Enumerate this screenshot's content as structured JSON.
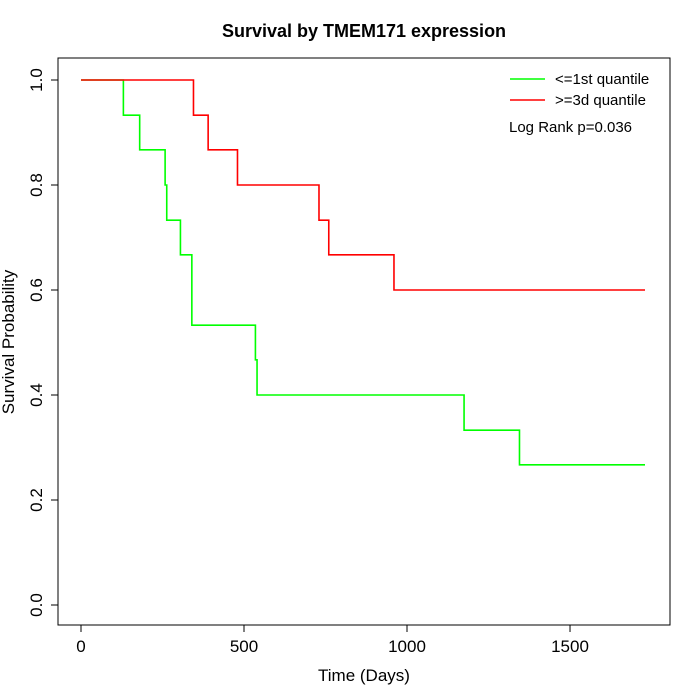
{
  "chart_data": {
    "type": "line",
    "title": "Survival by TMEM171 expression",
    "xlabel": "Time (Days)",
    "ylabel": "Survival Probability",
    "xlim": [
      0,
      1730
    ],
    "ylim": [
      0,
      1.0
    ],
    "xticks": [
      0,
      500,
      1000,
      1500
    ],
    "yticks": [
      0.0,
      0.2,
      0.4,
      0.6,
      0.8,
      1.0
    ],
    "xtick_labels": [
      "0",
      "500",
      "1000",
      "1500"
    ],
    "ytick_labels": [
      "0.0",
      "0.2",
      "0.4",
      "0.6",
      "0.8",
      "1.0"
    ],
    "step": true,
    "grid": false,
    "legend_position": "top-right",
    "annotation": "Log Rank p=0.036",
    "series": [
      {
        "name": "<=1st quantile",
        "color": "#00ff00",
        "points": [
          [
            0,
            1.0
          ],
          [
            130,
            0.933
          ],
          [
            180,
            0.867
          ],
          [
            258,
            0.8
          ],
          [
            263,
            0.733
          ],
          [
            305,
            0.667
          ],
          [
            340,
            0.533
          ],
          [
            535,
            0.467
          ],
          [
            540,
            0.4
          ],
          [
            1175,
            0.333
          ],
          [
            1345,
            0.267
          ],
          [
            1730,
            0.267
          ]
        ]
      },
      {
        "name": ">=3d quantile",
        "color": "#ff0000",
        "points": [
          [
            0,
            1.0
          ],
          [
            345,
            0.933
          ],
          [
            390,
            0.867
          ],
          [
            480,
            0.8
          ],
          [
            730,
            0.733
          ],
          [
            760,
            0.667
          ],
          [
            960,
            0.6
          ],
          [
            1730,
            0.6
          ]
        ]
      }
    ]
  }
}
